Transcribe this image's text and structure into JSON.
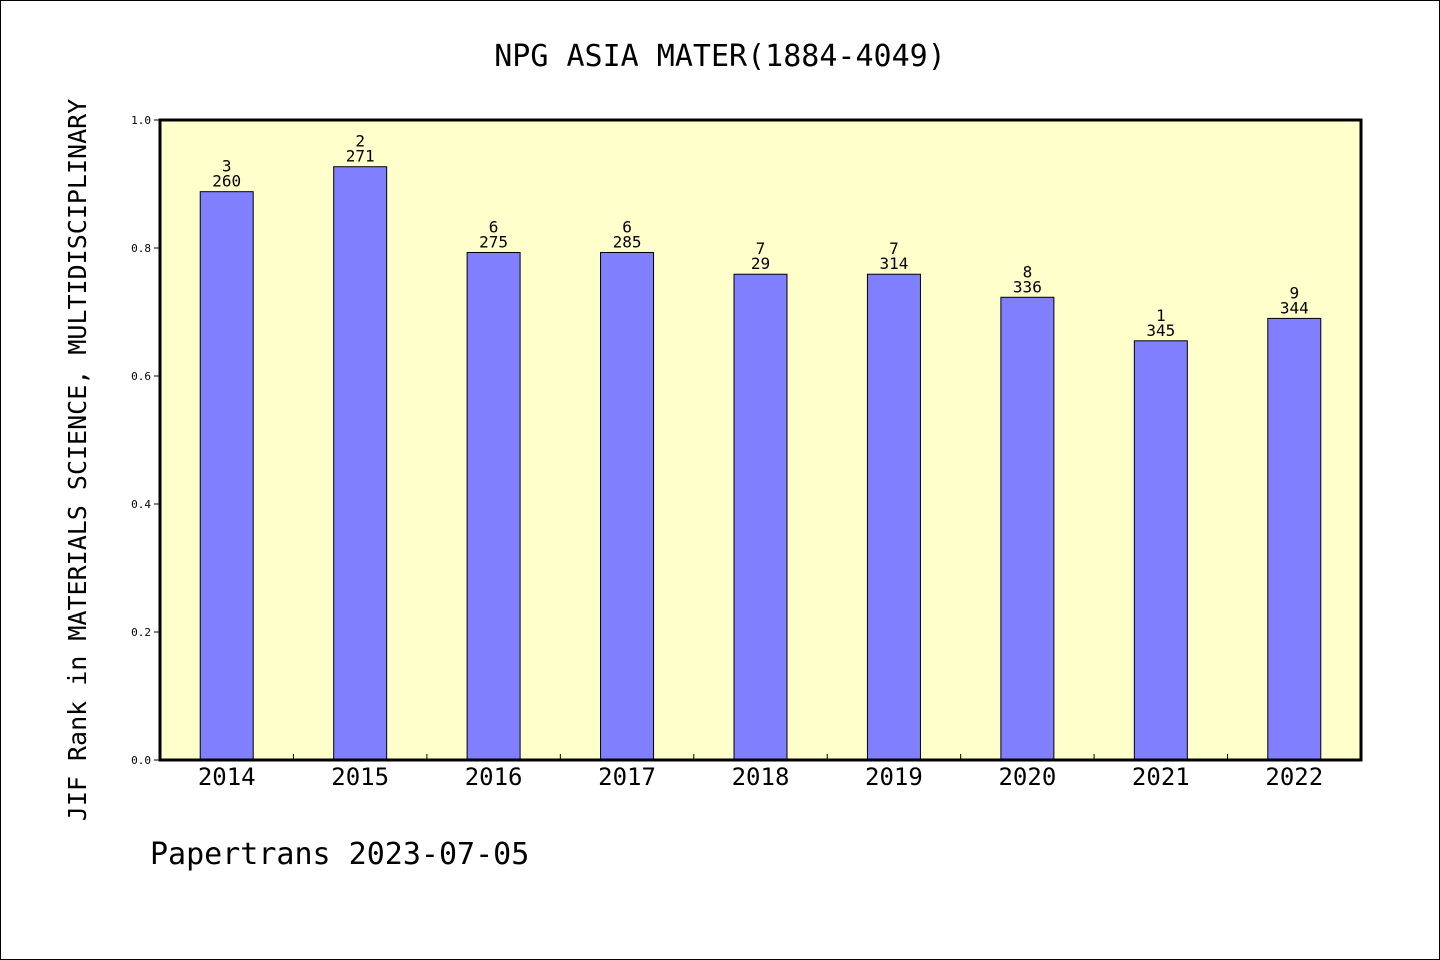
{
  "chart_data": {
    "type": "bar",
    "title": "NPG ASIA MATER(1884-4049)",
    "xlabel": "",
    "ylabel": "JIF Rank in MATERIALS SCIENCE, MULTIDISCIPLINARY",
    "ylim": [
      0,
      1
    ],
    "yticks": [
      "0.0",
      "0.2",
      "0.4",
      "0.6",
      "0.8",
      "1.0"
    ],
    "categories": [
      "2014",
      "2015",
      "2016",
      "2017",
      "2018",
      "2019",
      "2020",
      "2021",
      "2022"
    ],
    "values": [
      0.888,
      0.927,
      0.793,
      0.793,
      0.759,
      0.759,
      0.723,
      0.655,
      0.69
    ],
    "rank_labels": [
      "3",
      "2",
      "6",
      "6",
      "7",
      "7",
      "8",
      "1",
      "9"
    ],
    "total_labels": [
      "260",
      "271",
      "275",
      "285",
      "29",
      "314",
      "336",
      "345",
      "344"
    ],
    "grid": false,
    "colors": {
      "bar": "#8080ff",
      "plot_background": "#ffffcc",
      "axes": "#000000"
    }
  },
  "footer": "Papertrans 2023-07-05"
}
